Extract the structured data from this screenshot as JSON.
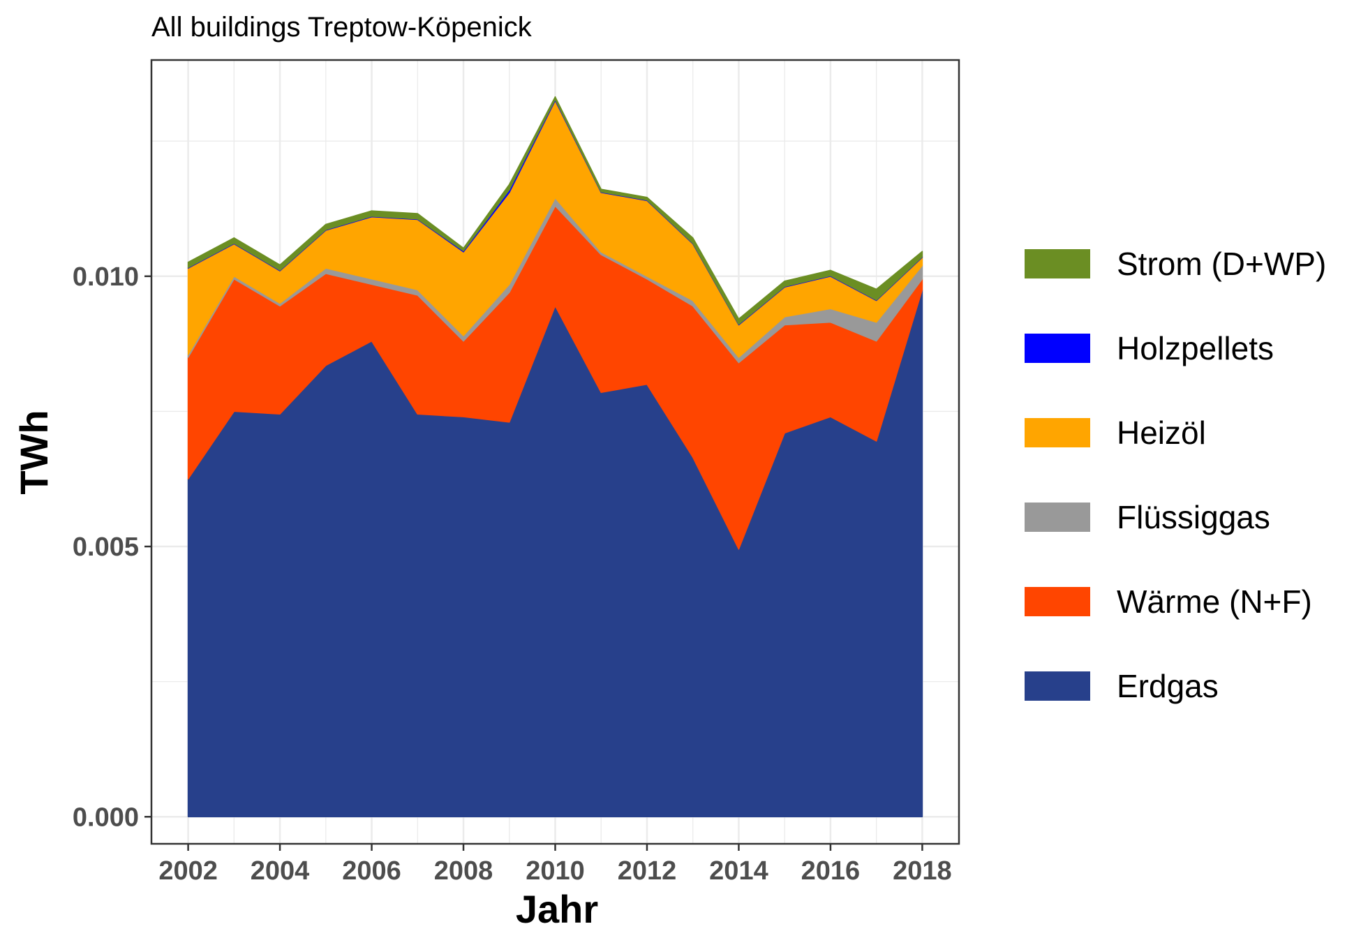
{
  "chart_data": {
    "type": "area",
    "stacked": true,
    "title": "All buildings Treptow-Köpenick",
    "xlabel": "Jahr",
    "ylabel": "TWh",
    "x": [
      2002,
      2003,
      2004,
      2005,
      2006,
      2007,
      2008,
      2009,
      2010,
      2011,
      2012,
      2013,
      2014,
      2015,
      2016,
      2017,
      2018
    ],
    "x_ticks": [
      "2002",
      "2004",
      "2006",
      "2008",
      "2010",
      "2012",
      "2014",
      "2016",
      "2018"
    ],
    "y_ticks": [
      "0.000",
      "0.005",
      "0.010"
    ],
    "xlim": [
      2001.2,
      2018.8
    ],
    "ylim": [
      -0.0005,
      0.014
    ],
    "grid": true,
    "legend_position": "right",
    "series": [
      {
        "name": "Erdgas",
        "color": "#27408b",
        "values": [
          0.00625,
          0.0075,
          0.00745,
          0.00835,
          0.0088,
          0.00745,
          0.0074,
          0.0073,
          0.00945,
          0.00785,
          0.008,
          0.00665,
          0.00495,
          0.0071,
          0.0074,
          0.00695,
          0.00975
        ]
      },
      {
        "name": "Wärme (N+F)",
        "color": "#ff4500",
        "values": [
          0.00225,
          0.00245,
          0.002,
          0.0017,
          0.00105,
          0.0022,
          0.0014,
          0.0024,
          0.00185,
          0.00255,
          0.00195,
          0.0028,
          0.00345,
          0.002,
          0.00175,
          0.00185,
          0.0002
        ]
      },
      {
        "name": "Flüssiggas",
        "color": "#999999",
        "values": [
          5e-05,
          5e-05,
          5e-05,
          0.0001,
          0.0001,
          0.0001,
          0.0001,
          0.00015,
          0.00015,
          5e-05,
          5e-05,
          0.0001,
          0.0001,
          0.00015,
          0.00025,
          0.00035,
          0.00025
        ]
      },
      {
        "name": "Heizöl",
        "color": "#ffa500",
        "values": [
          0.0016,
          0.0006,
          0.0006,
          0.0007,
          0.00115,
          0.0013,
          0.00155,
          0.0017,
          0.0018,
          0.0011,
          0.0014,
          0.00105,
          0.0006,
          0.00055,
          0.0006,
          0.0004,
          0.00015
        ]
      },
      {
        "name": "Holzpellets",
        "color": "#0000ff",
        "values": [
          1e-05,
          1e-05,
          1e-05,
          1e-05,
          1e-05,
          1e-05,
          2e-05,
          5e-05,
          2e-05,
          1e-05,
          1e-05,
          1e-05,
          1e-05,
          1e-05,
          1e-05,
          1e-05,
          1e-05
        ]
      },
      {
        "name": "Strom (D+WP)",
        "color": "#6b8e23",
        "values": [
          0.0001,
          0.0001,
          0.0001,
          0.0001,
          0.0001,
          0.0001,
          5e-05,
          0.0001,
          5e-05,
          5e-05,
          5e-05,
          0.0001,
          0.0001,
          0.0001,
          0.0001,
          0.0002,
          0.0001
        ]
      }
    ],
    "legend_order": [
      "Strom (D+WP)",
      "Holzpellets",
      "Heizöl",
      "Flüssiggas",
      "Wärme (N+F)",
      "Erdgas"
    ]
  }
}
